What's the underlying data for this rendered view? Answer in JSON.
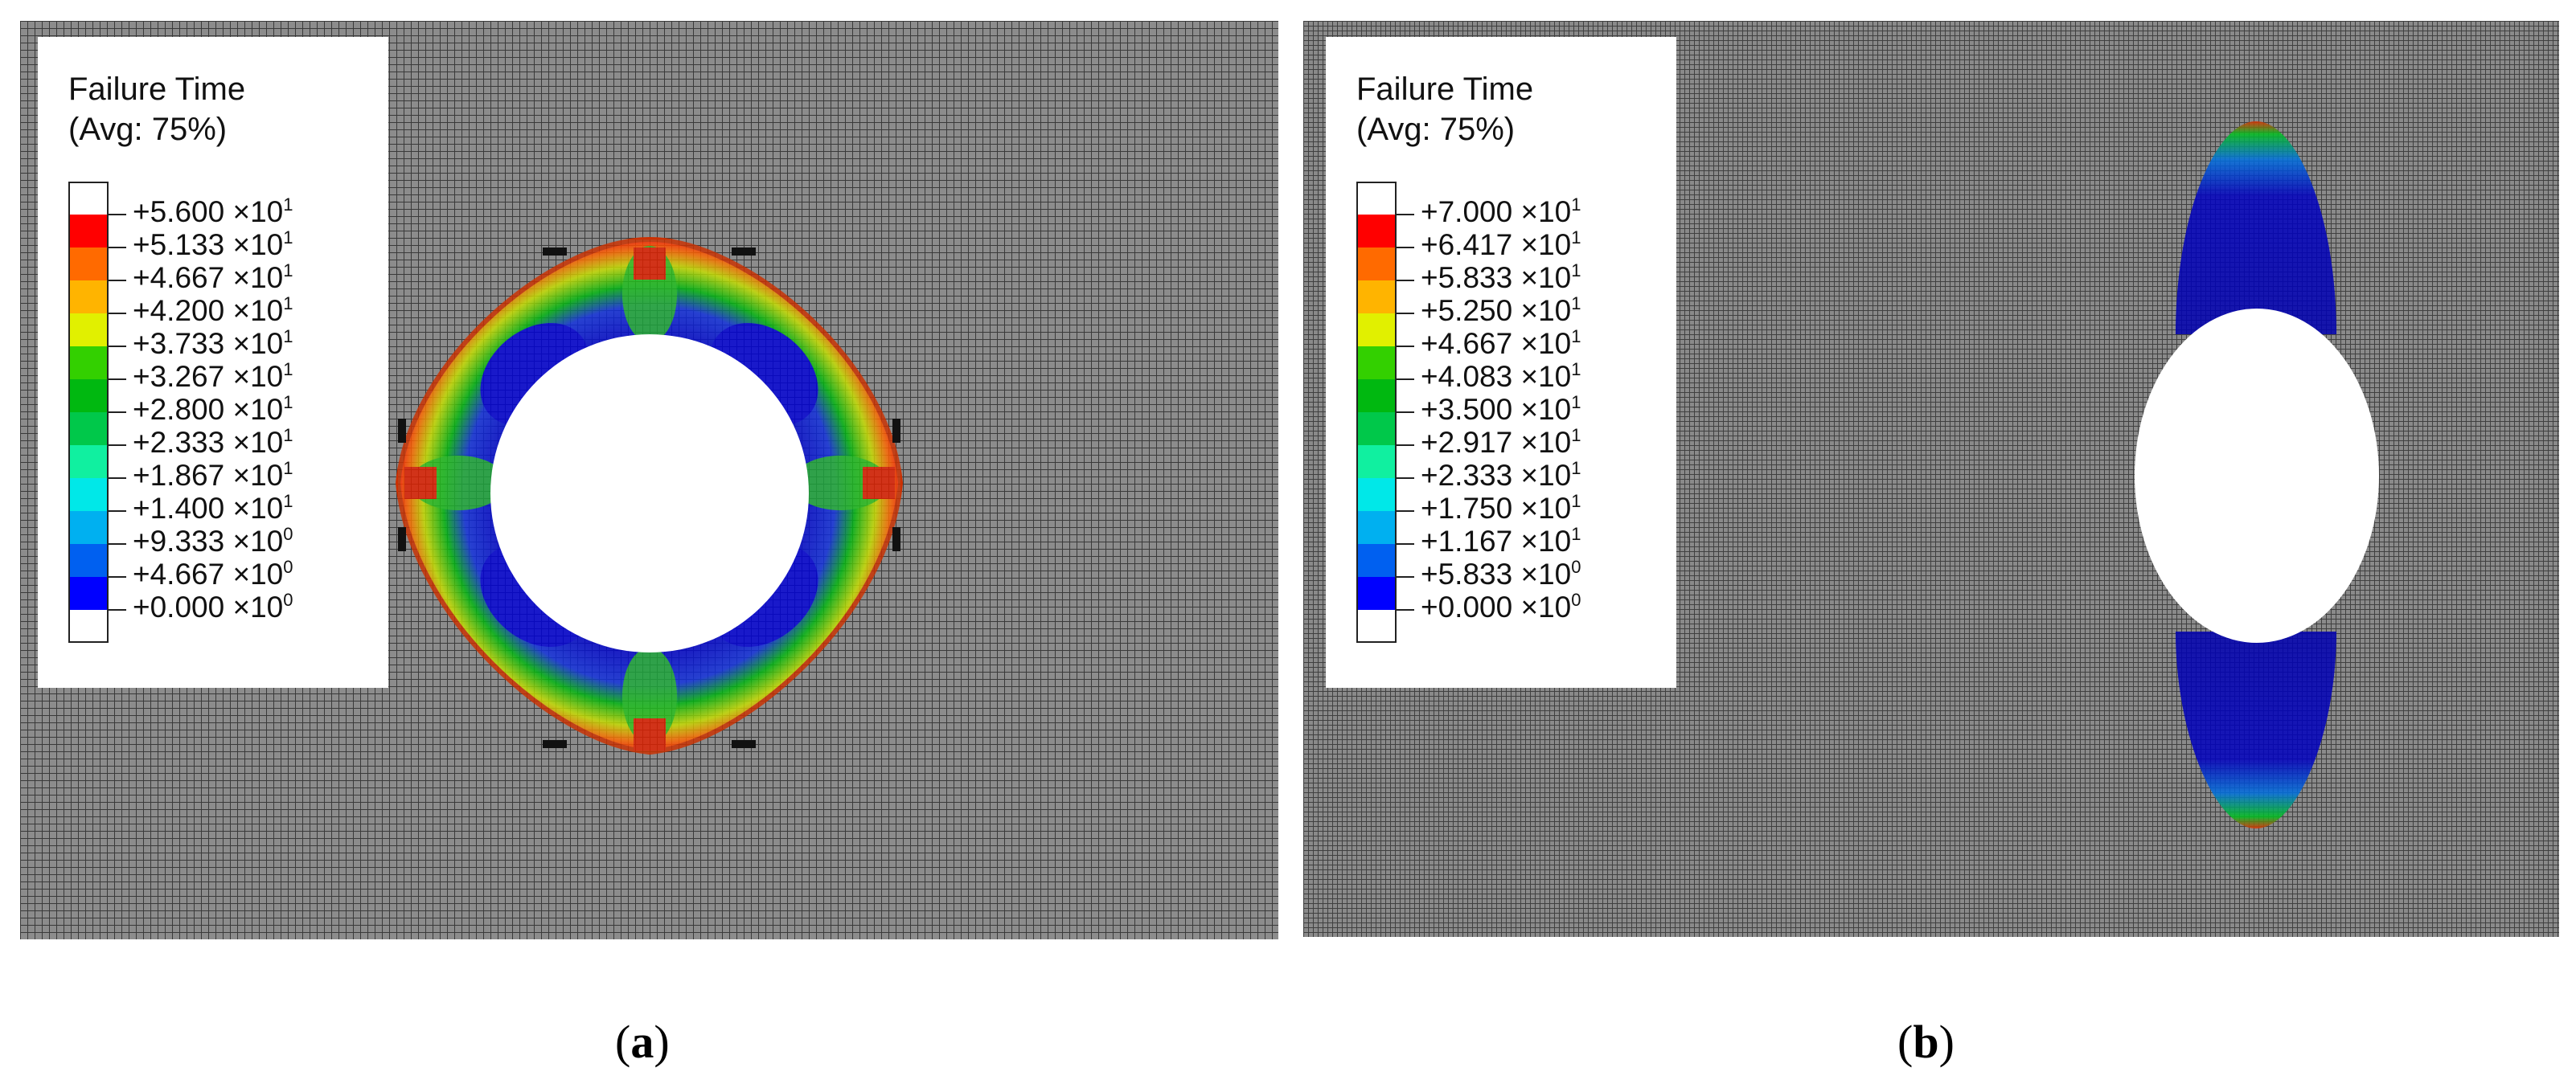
{
  "panels": [
    {
      "id": "a",
      "caption_open": "(",
      "caption_letter": "a",
      "caption_close": ")",
      "legend": {
        "title": "Failure Time",
        "subtitle": "(Avg: 75%)",
        "swatch_colors": [
          "#ffffff",
          "#ff0000",
          "#ff6a00",
          "#ffb400",
          "#e1f000",
          "#33d000",
          "#00b810",
          "#00c84a",
          "#10f0a0",
          "#00e8e8",
          "#00b0f0",
          "#0060f0",
          "#0000ff",
          "#ffffff"
        ],
        "ticks": [
          {
            "m": "+5.600",
            "e": "1"
          },
          {
            "m": "+5.133",
            "e": "1"
          },
          {
            "m": "+4.667",
            "e": "1"
          },
          {
            "m": "+4.200",
            "e": "1"
          },
          {
            "m": "+3.733",
            "e": "1"
          },
          {
            "m": "+3.267",
            "e": "1"
          },
          {
            "m": "+2.800",
            "e": "1"
          },
          {
            "m": "+2.333",
            "e": "1"
          },
          {
            "m": "+1.867",
            "e": "1"
          },
          {
            "m": "+1.400",
            "e": "1"
          },
          {
            "m": "+9.333",
            "e": "0"
          },
          {
            "m": "+4.667",
            "e": "0"
          },
          {
            "m": "+0.000",
            "e": "0"
          }
        ]
      }
    },
    {
      "id": "b",
      "caption_open": "(",
      "caption_letter": "b",
      "caption_close": ")",
      "legend": {
        "title": "Failure Time",
        "subtitle": "(Avg: 75%)",
        "swatch_colors": [
          "#ffffff",
          "#ff0000",
          "#ff6a00",
          "#ffb400",
          "#e1f000",
          "#33d000",
          "#00b810",
          "#00c84a",
          "#10f0a0",
          "#00e8e8",
          "#00b0f0",
          "#0060f0",
          "#0000ff",
          "#ffffff"
        ],
        "ticks": [
          {
            "m": "+7.000",
            "e": "1"
          },
          {
            "m": "+6.417",
            "e": "1"
          },
          {
            "m": "+5.833",
            "e": "1"
          },
          {
            "m": "+5.250",
            "e": "1"
          },
          {
            "m": "+4.667",
            "e": "1"
          },
          {
            "m": "+4.083",
            "e": "1"
          },
          {
            "m": "+3.500",
            "e": "1"
          },
          {
            "m": "+2.917",
            "e": "1"
          },
          {
            "m": "+2.333",
            "e": "1"
          },
          {
            "m": "+1.750",
            "e": "1"
          },
          {
            "m": "+1.167",
            "e": "1"
          },
          {
            "m": "+5.833",
            "e": "0"
          },
          {
            "m": "+0.000",
            "e": "0"
          }
        ]
      }
    }
  ],
  "tick_times_sign": "×10"
}
